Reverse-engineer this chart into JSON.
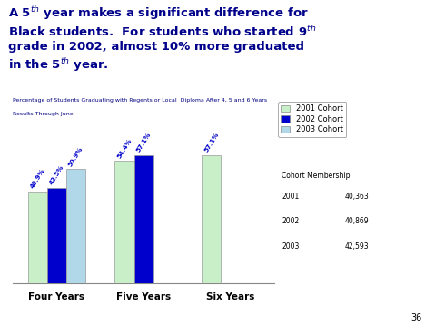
{
  "categories": [
    "Four Years",
    "Five Years",
    "Six Years"
  ],
  "series": {
    "2001 Cohort": [
      40.9,
      54.4,
      57.1
    ],
    "2002 Cohort": [
      42.5,
      57.1,
      null
    ],
    "2003 Cohort": [
      50.9,
      null,
      null
    ]
  },
  "bar_labels": {
    "2001 Cohort": [
      "40.9%",
      "54.4%",
      "57.1%"
    ],
    "2002 Cohort": [
      "42.5%",
      "57.1%",
      null
    ],
    "2003 Cohort": [
      "50.9%",
      null,
      null
    ]
  },
  "colors": {
    "2001 Cohort": "#c8efc8",
    "2002 Cohort": "#0000cc",
    "2003 Cohort": "#b0d8e8"
  },
  "cohort_membership": {
    "2001": "40,363",
    "2002": "40,869",
    "2003": "42,593"
  },
  "bar_width": 0.22,
  "ylim": [
    0,
    68
  ],
  "page_number": "36",
  "title_color": "#00008B",
  "subtitle_color": "#000080",
  "bar_label_color": "#0000CC",
  "background_color": "#ffffff",
  "title_fontsize": 9.5,
  "subtitle_fontsize": 4.5,
  "legend_fontsize": 6.0,
  "xtick_fontsize": 7.5
}
